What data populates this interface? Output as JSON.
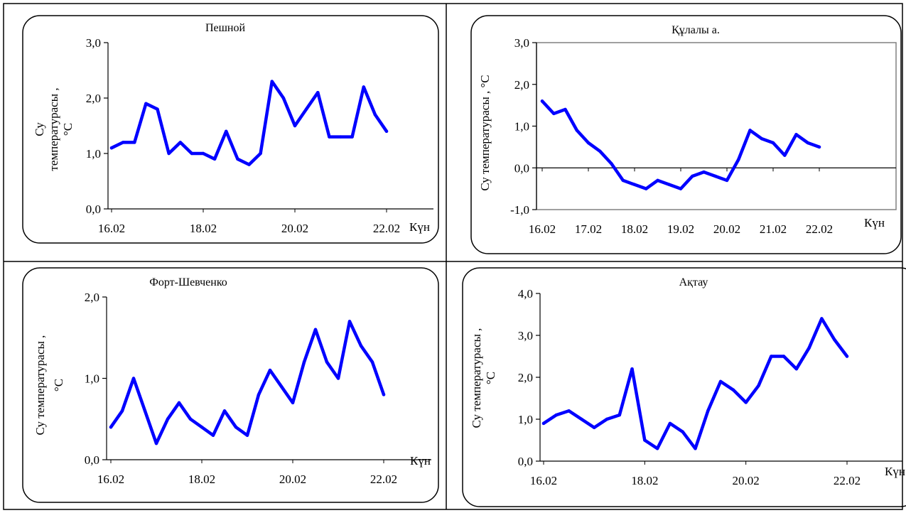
{
  "colors": {
    "series": "#0000ff",
    "axis": "#000000",
    "frame": "#808080",
    "border": "#000000",
    "background": "#ffffff"
  },
  "chart_data": [
    {
      "type": "line",
      "title": "Пешной",
      "ylabel": "Су температурасы, °С",
      "ylabel_lines": [
        "Су",
        "температурасы ,",
        "°С"
      ],
      "xlabel": "Күн",
      "ylim": [
        0,
        3
      ],
      "yticks": [
        "0,0",
        "1,0",
        "2,0",
        "3,0"
      ],
      "xticks": [
        "16.02",
        "18.02",
        "20.02",
        "22.02"
      ],
      "x": [
        "16.02",
        "16.25",
        "16.5",
        "16.75",
        "17.02",
        "17.25",
        "17.5",
        "17.75",
        "18.02",
        "18.25",
        "18.5",
        "18.75",
        "19.02",
        "19.25",
        "19.5",
        "19.75",
        "20.02",
        "20.25",
        "20.5",
        "20.75",
        "21.02",
        "21.25",
        "21.5",
        "21.75",
        "22.02"
      ],
      "series": [
        {
          "values": [
            1.1,
            1.2,
            1.2,
            1.9,
            1.8,
            1.0,
            1.2,
            1.0,
            1.0,
            0.9,
            1.4,
            0.9,
            0.8,
            1.0,
            2.3,
            2.0,
            1.5,
            1.8,
            2.1,
            1.3,
            1.3,
            1.3,
            2.2,
            1.7,
            1.4
          ]
        }
      ],
      "boxed_plot": false,
      "grid": false
    },
    {
      "type": "line",
      "title": "Құлалы а.",
      "ylabel": "Су температурасы , °С",
      "ylabel_lines": [
        "Су температурасы , °С"
      ],
      "xlabel": "Күн",
      "ylim": [
        -1,
        3
      ],
      "yticks": [
        "-1,0",
        "0,0",
        "1,0",
        "2,0",
        "3,0"
      ],
      "xticks": [
        "16.02",
        "17.02",
        "18.02",
        "19.02",
        "20.02",
        "21.02",
        "22.02"
      ],
      "x": [
        "16.02",
        "16.25",
        "16.5",
        "16.75",
        "17.02",
        "17.25",
        "17.5",
        "17.75",
        "18.02",
        "18.25",
        "18.5",
        "18.75",
        "19.02",
        "19.25",
        "19.5",
        "19.75",
        "20.02",
        "20.25",
        "20.5",
        "20.75",
        "21.02",
        "21.25",
        "21.5",
        "21.75",
        "22.02"
      ],
      "series": [
        {
          "values": [
            1.6,
            1.3,
            1.4,
            0.9,
            0.6,
            0.4,
            0.1,
            -0.3,
            -0.4,
            -0.5,
            -0.3,
            -0.4,
            -0.5,
            -0.2,
            -0.1,
            -0.2,
            -0.3,
            0.2,
            0.9,
            0.7,
            0.6,
            0.3,
            0.8,
            0.6,
            0.5
          ]
        }
      ],
      "boxed_plot": true,
      "grid": false
    },
    {
      "type": "line",
      "title": "Форт-Шевченко",
      "ylabel": "Су температурасы , °С",
      "ylabel_lines": [
        "Су температурасы ,",
        "°С"
      ],
      "xlabel": "Күн",
      "ylim": [
        0,
        2
      ],
      "yticks": [
        "0,0",
        "1,0",
        "2,0"
      ],
      "xticks": [
        "16.02",
        "18.02",
        "20.02",
        "22.02"
      ],
      "x": [
        "16.02",
        "16.25",
        "16.5",
        "16.75",
        "17.02",
        "17.25",
        "17.5",
        "17.75",
        "18.02",
        "18.25",
        "18.5",
        "18.75",
        "19.02",
        "19.25",
        "19.5",
        "19.75",
        "20.02",
        "20.25",
        "20.5",
        "20.75",
        "21.02",
        "21.25",
        "21.5",
        "21.75",
        "22.02"
      ],
      "series": [
        {
          "values": [
            0.4,
            0.6,
            1.0,
            0.6,
            0.2,
            0.5,
            0.7,
            0.5,
            0.4,
            0.3,
            0.6,
            0.4,
            0.3,
            0.8,
            1.1,
            0.9,
            0.7,
            1.2,
            1.6,
            1.2,
            1.0,
            1.7,
            1.4,
            1.2,
            0.8
          ]
        }
      ],
      "boxed_plot": false,
      "grid": false
    },
    {
      "type": "line",
      "title": "Ақтау",
      "ylabel": "Су температурасы , °С",
      "ylabel_lines": [
        "Су температурасы ,",
        "°С"
      ],
      "xlabel": "Күн",
      "ylim": [
        0,
        4
      ],
      "yticks": [
        "0,0",
        "1,0",
        "2,0",
        "3,0",
        "4,0"
      ],
      "xticks": [
        "16.02",
        "18.02",
        "20.02",
        "22.02"
      ],
      "x": [
        "16.02",
        "16.25",
        "16.5",
        "16.75",
        "17.02",
        "17.25",
        "17.5",
        "17.75",
        "18.02",
        "18.25",
        "18.5",
        "18.75",
        "19.02",
        "19.25",
        "19.5",
        "19.75",
        "20.02",
        "20.25",
        "20.5",
        "20.75",
        "21.02",
        "21.25",
        "21.5",
        "21.75",
        "22.02"
      ],
      "series": [
        {
          "values": [
            0.9,
            1.1,
            1.2,
            1.0,
            0.8,
            1.0,
            1.1,
            2.2,
            0.5,
            0.3,
            0.9,
            0.7,
            0.3,
            1.2,
            1.9,
            1.7,
            1.4,
            1.8,
            2.5,
            2.5,
            2.2,
            2.7,
            3.4,
            2.9,
            2.5
          ]
        }
      ],
      "boxed_plot": false,
      "grid": false
    }
  ]
}
